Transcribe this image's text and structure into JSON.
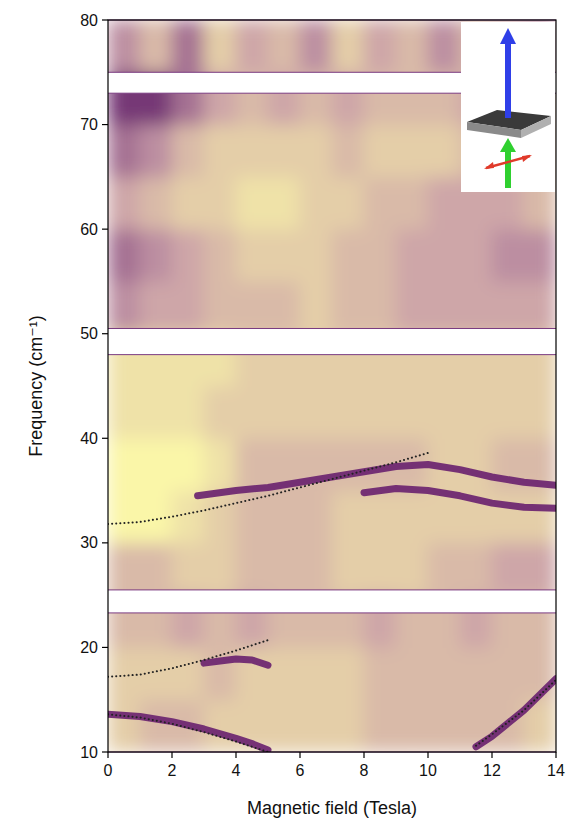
{
  "chart_data": {
    "type": "heatmap",
    "x_label": "Magnetic field (Tesla)",
    "y_label": "Frequency (cm⁻¹)",
    "xlim": [
      0,
      14
    ],
    "xticks": [
      0,
      2,
      4,
      6,
      8,
      10,
      12,
      14
    ],
    "ylim": [
      10,
      80
    ],
    "yticks": [
      10,
      20,
      30,
      40,
      50,
      60,
      70,
      80
    ],
    "bands": [
      [
        75,
        80
      ],
      [
        50.5,
        73
      ],
      [
        25.5,
        48
      ],
      [
        10,
        23.3
      ]
    ],
    "cells": {
      "x": [
        0,
        1,
        2,
        3,
        4,
        5,
        6,
        7,
        8,
        9,
        10,
        11,
        12,
        13,
        14
      ],
      "y": [
        10,
        15,
        20,
        25,
        30,
        35,
        40,
        45,
        50,
        55,
        60,
        65,
        70,
        75,
        80
      ],
      "zlim": [
        0,
        9
      ],
      "values": [
        [
          7,
          6,
          6,
          7,
          7,
          7,
          7,
          7,
          6,
          6,
          6,
          6,
          6,
          7
        ],
        [
          7,
          7,
          7,
          6,
          7,
          7,
          7,
          7,
          6,
          6,
          6,
          6,
          6,
          6
        ],
        [
          6,
          6,
          5,
          6,
          5,
          6,
          6,
          6,
          5,
          6,
          6,
          5,
          6,
          6
        ],
        [
          6,
          6,
          7,
          7,
          6,
          6,
          6,
          7,
          7,
          7,
          6,
          6,
          5,
          5
        ],
        [
          9,
          9,
          8,
          7,
          6,
          6,
          6,
          7,
          7,
          7,
          7,
          7,
          7,
          7
        ],
        [
          9,
          9,
          9,
          8,
          6,
          6,
          6,
          6,
          6,
          6,
          7,
          7,
          6,
          6
        ],
        [
          8,
          8,
          8,
          7,
          7,
          7,
          7,
          7,
          7,
          7,
          7,
          7,
          7,
          7
        ],
        [
          8,
          8,
          8,
          8,
          7,
          7,
          7,
          7,
          7,
          7,
          7,
          7,
          7,
          7
        ],
        [
          4,
          5,
          5,
          6,
          6,
          6,
          7,
          6,
          6,
          5,
          5,
          5,
          5,
          5
        ],
        [
          3,
          4,
          5,
          6,
          7,
          7,
          7,
          6,
          6,
          5,
          5,
          5,
          4,
          4
        ],
        [
          5,
          6,
          7,
          7,
          8,
          8,
          7,
          7,
          6,
          6,
          5,
          5,
          5,
          6
        ],
        [
          3,
          4,
          6,
          7,
          7,
          7,
          7,
          6,
          7,
          7,
          7,
          6,
          6,
          6
        ],
        [
          1,
          1,
          3,
          5,
          6,
          5,
          6,
          5,
          6,
          6,
          6,
          5,
          6,
          6
        ],
        [
          4,
          6,
          3,
          7,
          5,
          6,
          4,
          7,
          5,
          6,
          4,
          6,
          5,
          4
        ]
      ]
    },
    "series": [
      {
        "x": [
          2.8,
          4,
          5,
          6,
          7,
          8,
          9,
          10,
          11,
          12,
          13,
          14
        ],
        "values": [
          34.5,
          35,
          35.3,
          35.8,
          36.3,
          36.8,
          37.3,
          37.5,
          37,
          36.3,
          35.8,
          35.5
        ],
        "line_style": "solid",
        "color": "#6b2470"
      },
      {
        "x": [
          8,
          9,
          10,
          11,
          12,
          13,
          14
        ],
        "values": [
          34.8,
          35.2,
          35,
          34.5,
          33.8,
          33.4,
          33.3
        ],
        "line_style": "solid",
        "color": "#6b2470"
      },
      {
        "x": [
          0,
          1,
          2,
          3,
          4,
          4.5,
          5
        ],
        "values": [
          13.6,
          13.4,
          12.9,
          12.2,
          11.3,
          10.8,
          10.2
        ],
        "line_style": "solid",
        "color": "#6b2470"
      },
      {
        "x": [
          3,
          3.5,
          4,
          4.5,
          5
        ],
        "values": [
          18.5,
          18.7,
          18.9,
          18.8,
          18.3
        ],
        "line_style": "solid",
        "color": "#6b2470"
      },
      {
        "x": [
          11.5,
          12,
          13,
          14
        ],
        "values": [
          10.5,
          11.5,
          14,
          17
        ],
        "line_style": "solid",
        "color": "#6b2470"
      },
      {
        "x": [
          0,
          1,
          2,
          3,
          4,
          5,
          6,
          7,
          8,
          9,
          10
        ],
        "values": [
          31.8,
          32,
          32.5,
          33.1,
          33.8,
          34.5,
          35.3,
          36.1,
          36.9,
          37.7,
          38.6
        ],
        "line_style": "dotted",
        "color": "#222222"
      },
      {
        "x": [
          0,
          1,
          2,
          3,
          4,
          5
        ],
        "values": [
          17.2,
          17.4,
          18,
          18.8,
          19.7,
          20.7
        ],
        "line_style": "dotted",
        "color": "#222222"
      },
      {
        "x": [
          0,
          1,
          2,
          3,
          4,
          5
        ],
        "values": [
          13.6,
          13.3,
          12.7,
          11.9,
          11,
          10
        ],
        "line_style": "dotted",
        "color": "#222222"
      },
      {
        "x": [
          11.5,
          12,
          13,
          14
        ],
        "values": [
          10.6,
          11.7,
          14,
          16.9
        ],
        "line_style": "dotted",
        "color": "#222222"
      }
    ]
  }
}
